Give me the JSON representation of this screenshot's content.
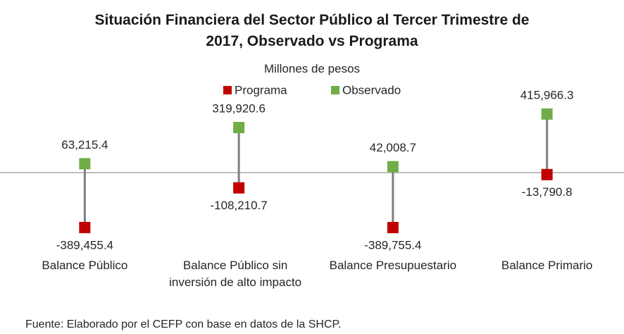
{
  "chart_data": {
    "type": "dumbbell",
    "title": "Situación Financiera del Sector Público al Tercer Trimestre de 2017, Observado vs Programa",
    "subtitle": "Millones de pesos",
    "source": "Fuente: Elaborado por el CEFP con base en datos de la SHCP.",
    "categories": [
      "Balance Público",
      "Balance Público sin inversión de alto impacto",
      "Balance Presupuestario",
      "Balance Primario"
    ],
    "ylim": [
      -500000,
      500000
    ],
    "legend": "top",
    "series": [
      {
        "name": "Programa",
        "color": "#c00000",
        "values": [
          -389455.4,
          -108210.7,
          -389755.4,
          -13790.8
        ],
        "value_labels": [
          "-389,455.4",
          "-108,210.7",
          "-389,755.4",
          "-13,790.8"
        ]
      },
      {
        "name": "Observado",
        "color": "#70ad47",
        "values": [
          63215.4,
          319920.6,
          42008.7,
          415966.3
        ],
        "value_labels": [
          "63,215.4",
          "319,920.6",
          "42,008.7",
          "415,966.3"
        ]
      }
    ]
  }
}
